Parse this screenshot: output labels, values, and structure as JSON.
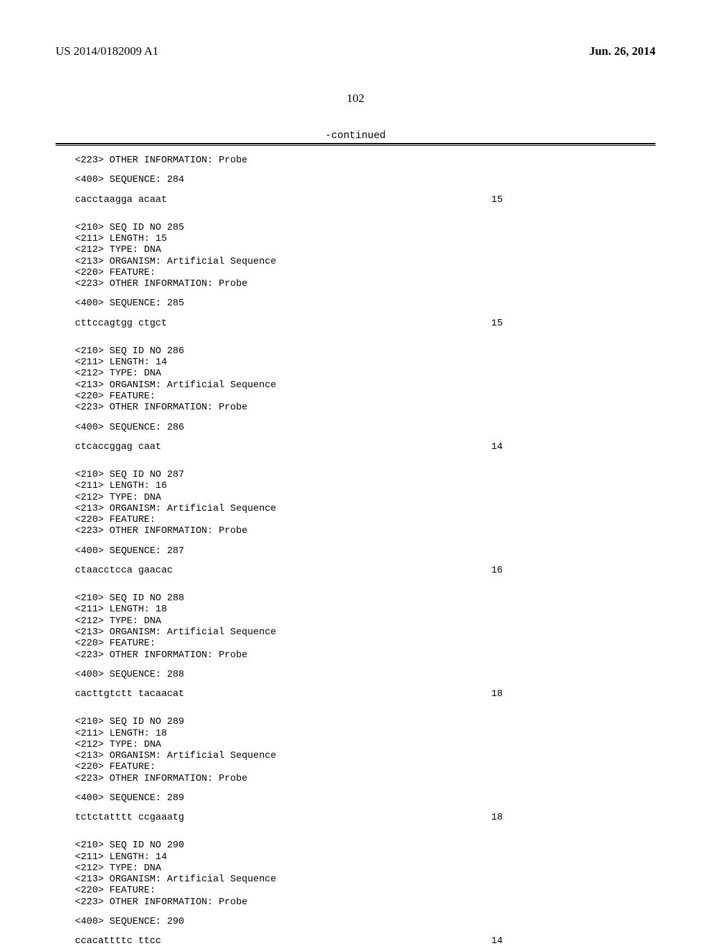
{
  "header": {
    "pub_number": "US 2014/0182009 A1",
    "pub_date": "Jun. 26, 2014"
  },
  "page_number": "102",
  "continued_label": "-continued",
  "blocks": [
    {
      "meta": [
        "<223> OTHER INFORMATION: Probe"
      ],
      "seq_header": "<400> SEQUENCE: 284",
      "seq": "cacctaagga acaat",
      "len": "15"
    },
    {
      "meta": [
        "<210> SEQ ID NO 285",
        "<211> LENGTH: 15",
        "<212> TYPE: DNA",
        "<213> ORGANISM: Artificial Sequence",
        "<220> FEATURE:",
        "<223> OTHER INFORMATION: Probe"
      ],
      "seq_header": "<400> SEQUENCE: 285",
      "seq": "cttccagtgg ctgct",
      "len": "15"
    },
    {
      "meta": [
        "<210> SEQ ID NO 286",
        "<211> LENGTH: 14",
        "<212> TYPE: DNA",
        "<213> ORGANISM: Artificial Sequence",
        "<220> FEATURE:",
        "<223> OTHER INFORMATION: Probe"
      ],
      "seq_header": "<400> SEQUENCE: 286",
      "seq": "ctcaccggag caat",
      "len": "14"
    },
    {
      "meta": [
        "<210> SEQ ID NO 287",
        "<211> LENGTH: 16",
        "<212> TYPE: DNA",
        "<213> ORGANISM: Artificial Sequence",
        "<220> FEATURE:",
        "<223> OTHER INFORMATION: Probe"
      ],
      "seq_header": "<400> SEQUENCE: 287",
      "seq": "ctaacctcca gaacac",
      "len": "16"
    },
    {
      "meta": [
        "<210> SEQ ID NO 288",
        "<211> LENGTH: 18",
        "<212> TYPE: DNA",
        "<213> ORGANISM: Artificial Sequence",
        "<220> FEATURE:",
        "<223> OTHER INFORMATION: Probe"
      ],
      "seq_header": "<400> SEQUENCE: 288",
      "seq": "cacttgtctt tacaacat",
      "len": "18"
    },
    {
      "meta": [
        "<210> SEQ ID NO 289",
        "<211> LENGTH: 18",
        "<212> TYPE: DNA",
        "<213> ORGANISM: Artificial Sequence",
        "<220> FEATURE:",
        "<223> OTHER INFORMATION: Probe"
      ],
      "seq_header": "<400> SEQUENCE: 289",
      "seq": "tctctatttt ccgaaatg",
      "len": "18"
    },
    {
      "meta": [
        "<210> SEQ ID NO 290",
        "<211> LENGTH: 14",
        "<212> TYPE: DNA",
        "<213> ORGANISM: Artificial Sequence",
        "<220> FEATURE:",
        "<223> OTHER INFORMATION: Probe"
      ],
      "seq_header": "<400> SEQUENCE: 290",
      "seq": "ccacattttc ttcc",
      "len": "14"
    }
  ]
}
